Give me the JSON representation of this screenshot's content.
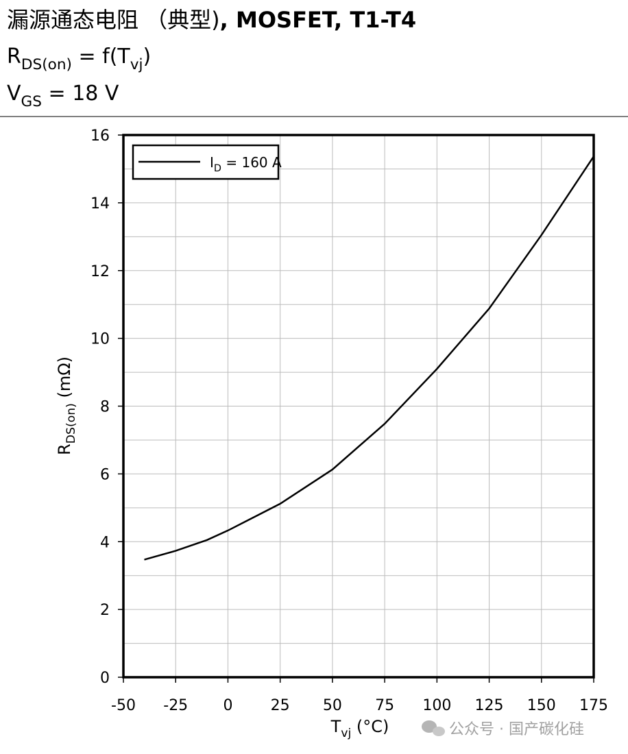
{
  "chart_data": {
    "type": "line",
    "title": [
      "漏源通态电阻 （典型)",
      ", MOSFET, T1-T4"
    ],
    "subtitle": [
      [
        "R",
        "DS(on)",
        " = f(T",
        "vj",
        ")"
      ],
      [
        "V",
        "GS",
        " = 18 V"
      ]
    ],
    "x_label": [
      "T",
      "vj",
      " (°C)"
    ],
    "y_label": [
      "R",
      "DS(on)",
      " (mΩ)"
    ],
    "x": [
      -40,
      -25,
      -10,
      0,
      25,
      50,
      75,
      100,
      125,
      150,
      175
    ],
    "series": [
      {
        "name": [
          "I",
          "D",
          " = 160 A"
        ],
        "color": "#000000",
        "values": [
          3.47,
          3.73,
          4.05,
          4.33,
          5.12,
          6.13,
          7.48,
          9.1,
          10.88,
          13.05,
          15.37
        ]
      }
    ],
    "xlim": [
      -50,
      175
    ],
    "xticks": [
      -50,
      -25,
      0,
      25,
      50,
      75,
      100,
      125,
      150,
      175
    ],
    "ylim": [
      0,
      16
    ],
    "yticks": [
      0,
      2,
      4,
      6,
      8,
      10,
      12,
      14,
      16
    ],
    "y_minor_grid": [
      1,
      3,
      5,
      7,
      9,
      11,
      13,
      15
    ],
    "grid": true,
    "legend": "top-left",
    "watermark": "公众号 · 国产碳化硅"
  }
}
